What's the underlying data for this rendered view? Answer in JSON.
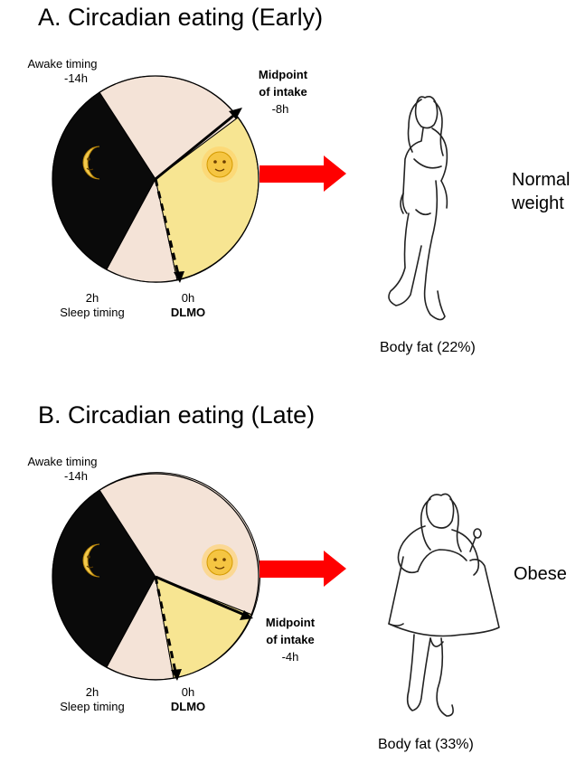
{
  "panels": [
    {
      "title": "A. Circadian eating (Early)",
      "awake_label": "Awake timing",
      "awake_value": "-14h",
      "sleep_value": "2h",
      "sleep_label": "Sleep timing",
      "dlmo_value": "0h",
      "dlmo_label": "DLMO",
      "midpoint_line1": "Midpoint",
      "midpoint_line2": "of intake",
      "midpoint_value": "-8h",
      "outcome_line1": "Normal",
      "outcome_line2": "weight",
      "body_fat": "Body fat (22%)"
    },
    {
      "title": "B. Circadian eating (Late)",
      "awake_label": "Awake timing",
      "awake_value": "-14h",
      "sleep_value": "2h",
      "sleep_label": "Sleep timing",
      "dlmo_value": "0h",
      "dlmo_label": "DLMO",
      "midpoint_line1": "Midpoint",
      "midpoint_line2": "of intake",
      "midpoint_value": "-4h",
      "outcome_line1": "Obese",
      "outcome_line2": "",
      "body_fat": "Body fat (33%)"
    }
  ],
  "colors": {
    "night": "#0a0a0a",
    "awake": "#f4e3d7",
    "eating": "#f7e592",
    "arrow": "#ff0000"
  },
  "icons": {
    "night": "crescent-moon-face-icon",
    "day": "sun-face-icon"
  }
}
